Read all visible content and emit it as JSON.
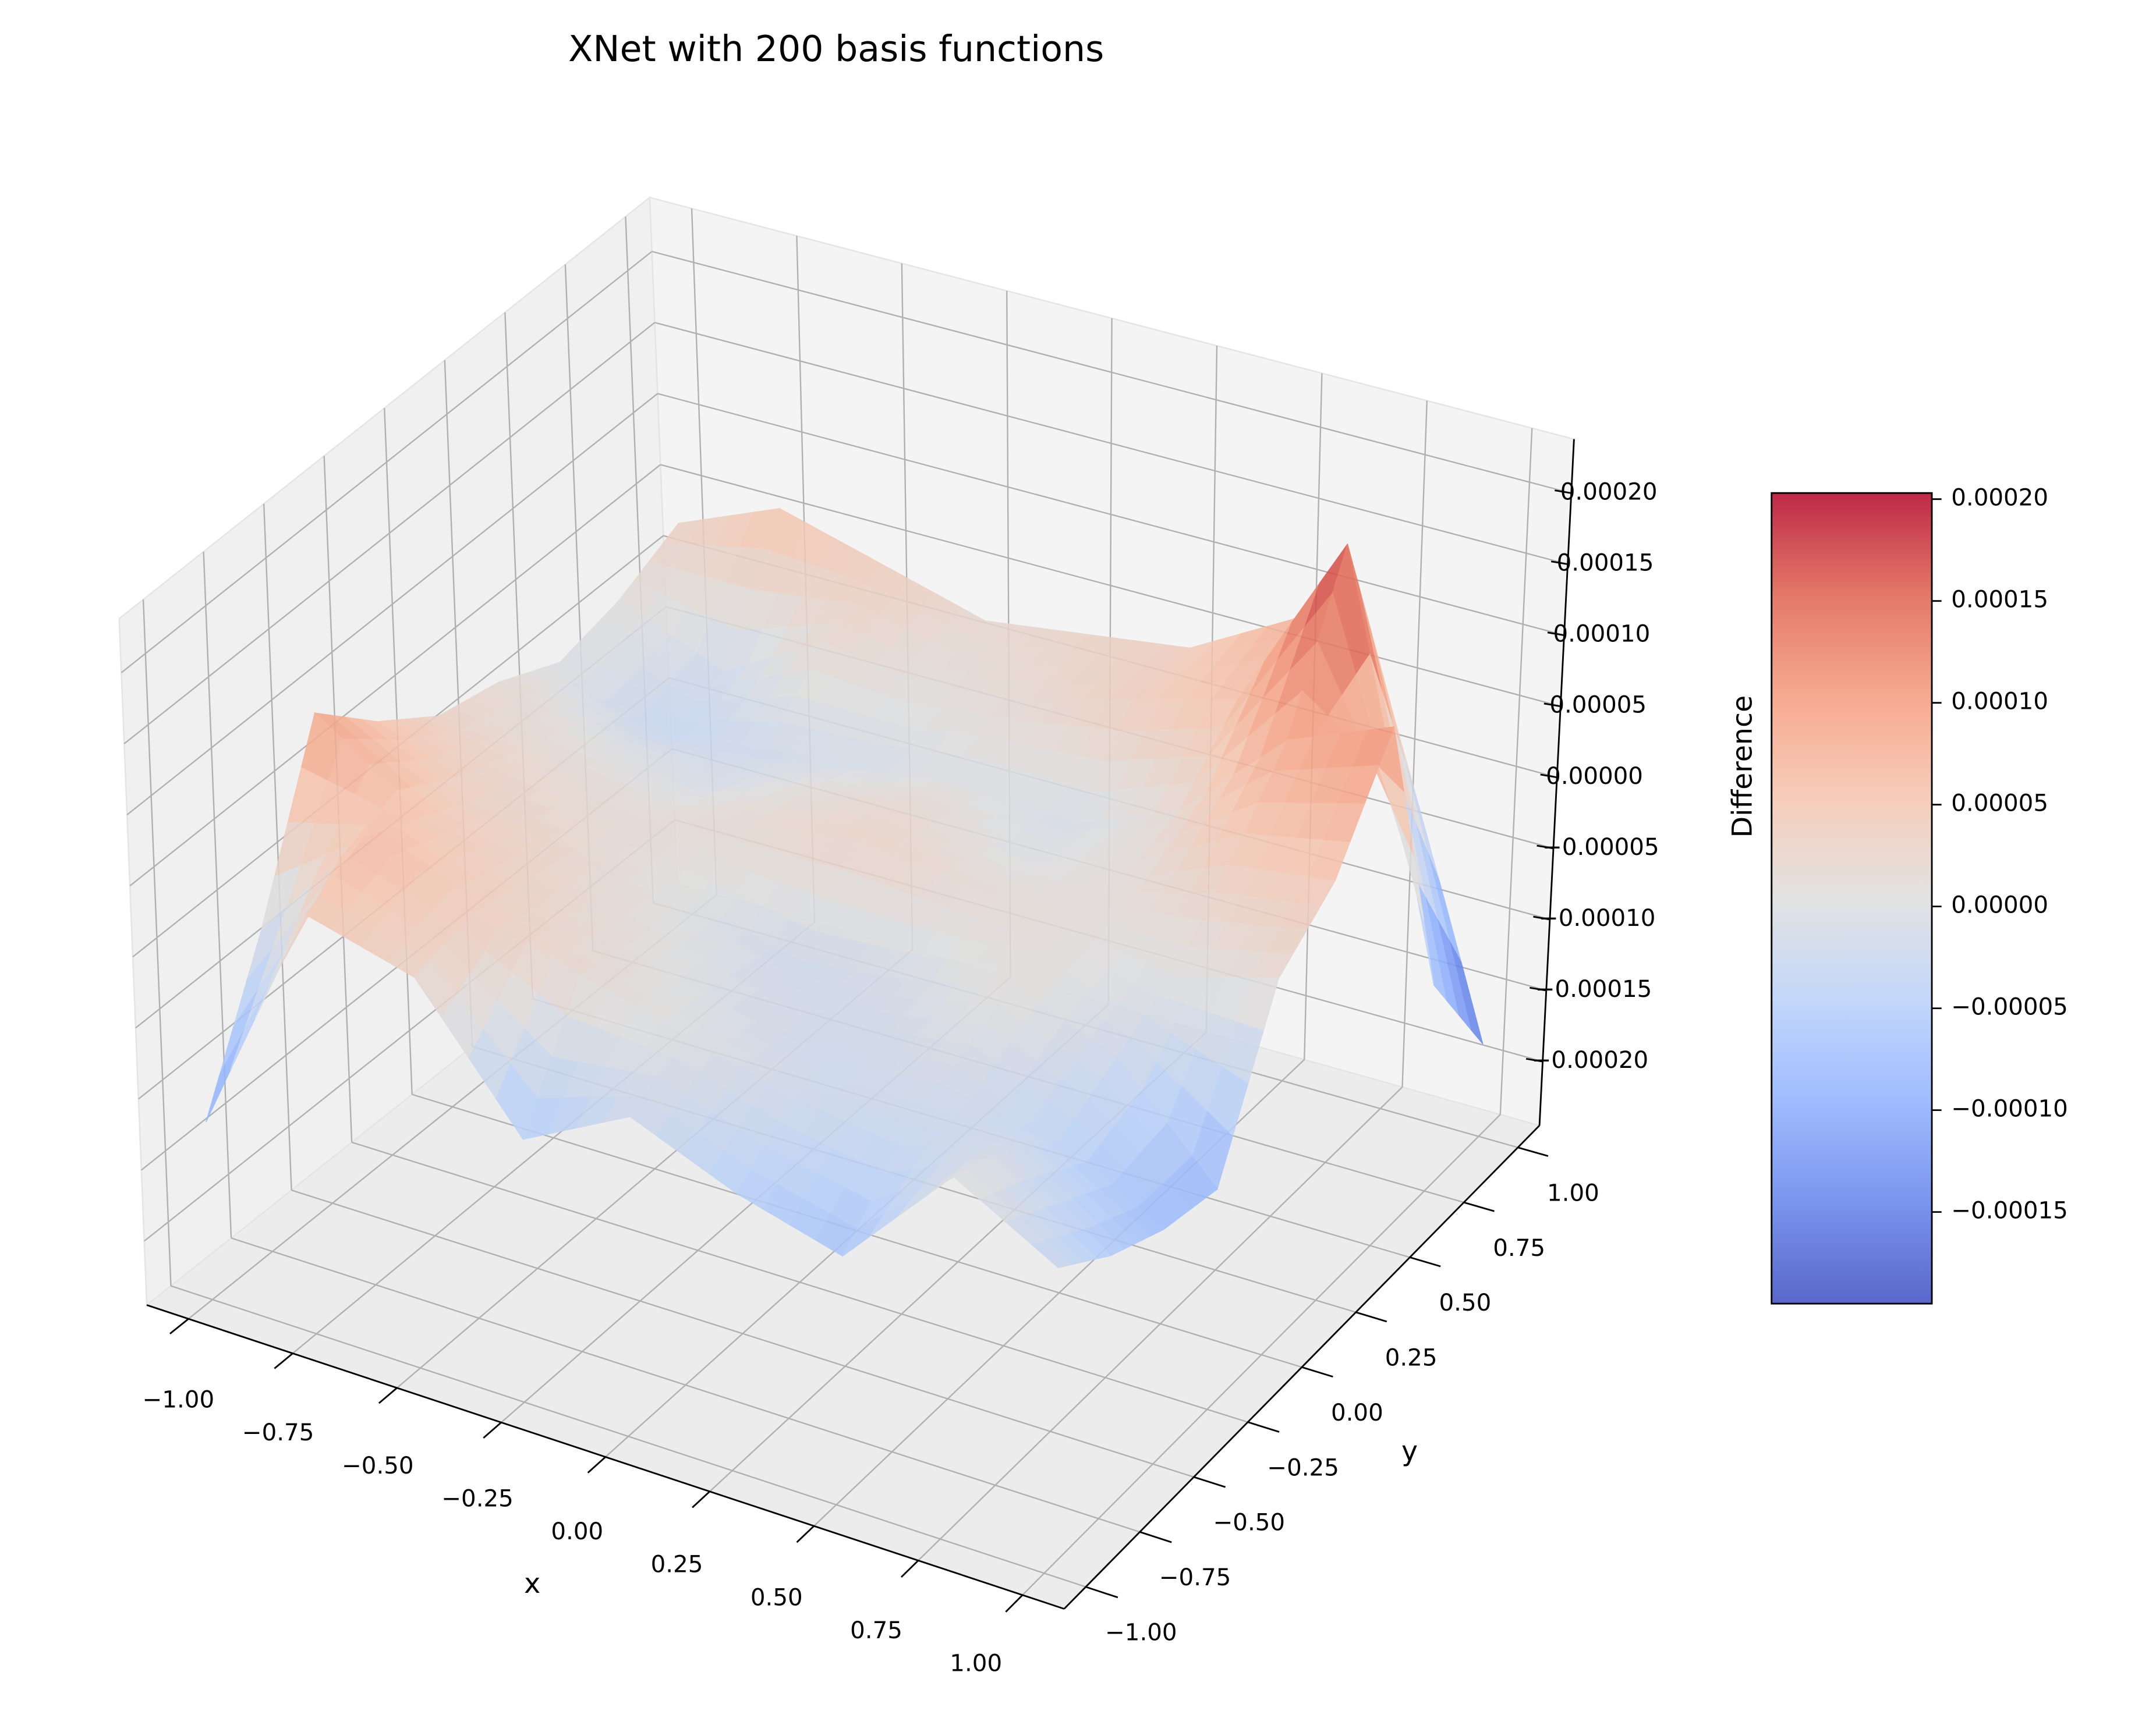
{
  "chart_data": {
    "type": "surface",
    "title": "XNet with 200 basis functions",
    "x_label": "x",
    "y_label": "y",
    "z_label": "Difference",
    "x": [
      -1,
      -0.75,
      -0.5,
      -0.25,
      0,
      0.25,
      0.5,
      0.75,
      1
    ],
    "y": [
      -1,
      -0.75,
      -0.5,
      -0.25,
      0,
      0.25,
      0.5,
      0.75,
      1
    ],
    "z": [
      [
        -0.00012,
        5e-05,
        3e-05,
        -6e-05,
        -2e-05,
        -5e-05,
        -7e-05,
        1e-05,
        -3e-05
      ],
      [
        -2e-05,
        7e-05,
        4e-05,
        2e-05,
        0.0,
        -2e-05,
        -3e-05,
        -1e-05,
        -6e-05
      ],
      [
        0.0001,
        5e-05,
        3e-05,
        1e-05,
        -1e-05,
        -2e-05,
        -1e-05,
        -4e-05,
        -8e-05
      ],
      [
        6e-05,
        3e-05,
        2e-05,
        0.0,
        -2e-05,
        -1e-05,
        1e-05,
        -2e-05,
        -9e-05
      ],
      [
        3e-05,
        2e-05,
        1e-05,
        2e-05,
        3e-05,
        2e-05,
        1e-05,
        0.0,
        2e-05
      ],
      [
        2e-05,
        0.0,
        -1e-05,
        1e-05,
        2e-05,
        0.0,
        1e-05,
        4e-05,
        5e-05
      ],
      [
        0.0,
        -3e-05,
        -2e-05,
        -1e-05,
        0.0,
        -1e-05,
        2e-05,
        9e-05,
        0.00012
      ],
      [
        1e-05,
        -2e-05,
        2e-05,
        1e-05,
        2e-05,
        4e-05,
        6e-05,
        0.00019,
        -0.0001
      ],
      [
        3e-05,
        6e-05,
        4e-05,
        2e-05,
        3e-05,
        4e-05,
        8e-05,
        3e-05,
        -0.00018
      ]
    ],
    "xlim": [
      -1.1,
      1.1
    ],
    "ylim": [
      -1.1,
      1.1
    ],
    "zlim": [
      -0.000245,
      0.000238
    ],
    "xticks": [
      {
        "value": -1,
        "label": "−1.00"
      },
      {
        "value": -0.75,
        "label": "−0.75"
      },
      {
        "value": -0.5,
        "label": "−0.50"
      },
      {
        "value": -0.25,
        "label": "−0.25"
      },
      {
        "value": 0,
        "label": "0.00"
      },
      {
        "value": 0.25,
        "label": "0.25"
      },
      {
        "value": 0.5,
        "label": "0.50"
      },
      {
        "value": 0.75,
        "label": "0.75"
      },
      {
        "value": 1,
        "label": "1.00"
      }
    ],
    "yticks": [
      {
        "value": -1,
        "label": "−1.00"
      },
      {
        "value": -0.75,
        "label": "−0.75"
      },
      {
        "value": -0.5,
        "label": "−0.50"
      },
      {
        "value": -0.25,
        "label": "−0.25"
      },
      {
        "value": 0,
        "label": "0.00"
      },
      {
        "value": 0.25,
        "label": "0.25"
      },
      {
        "value": 0.5,
        "label": "0.50"
      },
      {
        "value": 0.75,
        "label": "0.75"
      },
      {
        "value": 1,
        "label": "1.00"
      }
    ],
    "zticks": [
      {
        "value": -0.0002,
        "label": "−0.00020"
      },
      {
        "value": -0.00015,
        "label": "−0.00015"
      },
      {
        "value": -0.0001,
        "label": "−0.00010"
      },
      {
        "value": -5e-05,
        "label": "−0.00005"
      },
      {
        "value": 0,
        "label": "0.00000"
      },
      {
        "value": 5e-05,
        "label": "0.00005"
      },
      {
        "value": 0.0001,
        "label": "0.00010"
      },
      {
        "value": 0.00015,
        "label": "0.00015"
      },
      {
        "value": 0.0002,
        "label": "0.00020"
      }
    ],
    "grid": true,
    "colormap": "coolwarm",
    "alpha": 0.85,
    "colorbar": {
      "clim": [
        -0.000195,
        0.000203
      ],
      "ticks": [
        {
          "value": -0.00015,
          "label": "−0.00015"
        },
        {
          "value": -0.0001,
          "label": "−0.00010"
        },
        {
          "value": -5e-05,
          "label": "−0.00005"
        },
        {
          "value": 0,
          "label": "0.00000"
        },
        {
          "value": 5e-05,
          "label": "0.00005"
        },
        {
          "value": 0.0001,
          "label": "0.00010"
        },
        {
          "value": 0.00015,
          "label": "0.00015"
        },
        {
          "value": 0.0002,
          "label": "0.00020"
        }
      ]
    }
  }
}
